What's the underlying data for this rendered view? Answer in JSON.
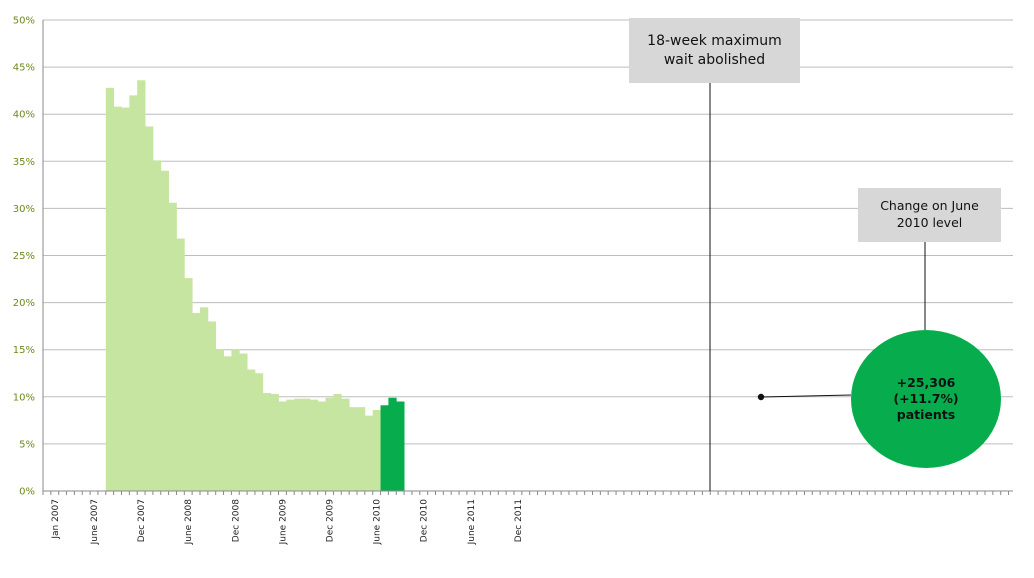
{
  "chart_data": {
    "type": "bar",
    "ylim": [
      0,
      50
    ],
    "y_ticks": [
      "0%",
      "5%",
      "10%",
      "15%",
      "20%",
      "25%",
      "30%",
      "35%",
      "40%",
      "45%",
      "50%"
    ],
    "x_tick_labels": [
      "Jan 2007",
      "June 2007",
      "Dec 2007",
      "June 2008",
      "Dec 2008",
      "June 2009",
      "Dec 2009",
      "June 2010",
      "Dec 2010",
      "June 2011",
      "Dec 2011"
    ],
    "grid": true,
    "series": [
      {
        "color": "#c6e5a0",
        "x": [
          "2007-08",
          "2007-09",
          "2007-10",
          "2007-11",
          "2007-12",
          "2008-01",
          "2008-02",
          "2008-03",
          "2008-04",
          "2008-05",
          "2008-06",
          "2008-07",
          "2008-08",
          "2008-09",
          "2008-10",
          "2008-11",
          "2008-12",
          "2009-01",
          "2009-02",
          "2009-03",
          "2009-04",
          "2009-05",
          "2009-06",
          "2009-07",
          "2009-08",
          "2009-09",
          "2009-10",
          "2009-11",
          "2009-12",
          "2010-01",
          "2010-02",
          "2010-03",
          "2010-04",
          "2010-05",
          "2010-06"
        ],
        "values": [
          42.8,
          40.8,
          40.7,
          42.0,
          43.6,
          38.7,
          35.1,
          34.0,
          30.6,
          26.8,
          22.6,
          18.9,
          19.5,
          18.0,
          15.0,
          14.3,
          15.0,
          14.6,
          12.9,
          12.5,
          10.4,
          10.3,
          9.5,
          9.7,
          9.8,
          9.8,
          9.7,
          9.5,
          9.9,
          10.3,
          9.8,
          8.9,
          8.9,
          8.0,
          8.6
        ]
      },
      {
        "color": "#07ad4d",
        "x": [
          "2010-07",
          "2010-08",
          "2010-09"
        ],
        "values": [
          9.1,
          9.9,
          9.5
        ]
      }
    ],
    "annotations": [
      {
        "id": "abolished",
        "text": "18-week maximum wait abolished"
      },
      {
        "id": "change",
        "text": "Change on June 2010 level"
      },
      {
        "id": "result",
        "text": "+25,306\n(+11.7%)\npatients"
      }
    ]
  }
}
